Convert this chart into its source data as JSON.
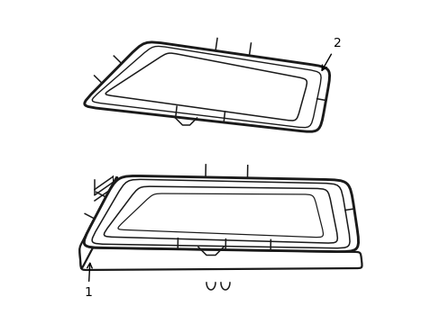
{
  "background_color": "#ffffff",
  "line_color": "#1a1a1a",
  "label1_text": "1",
  "label2_text": "2"
}
